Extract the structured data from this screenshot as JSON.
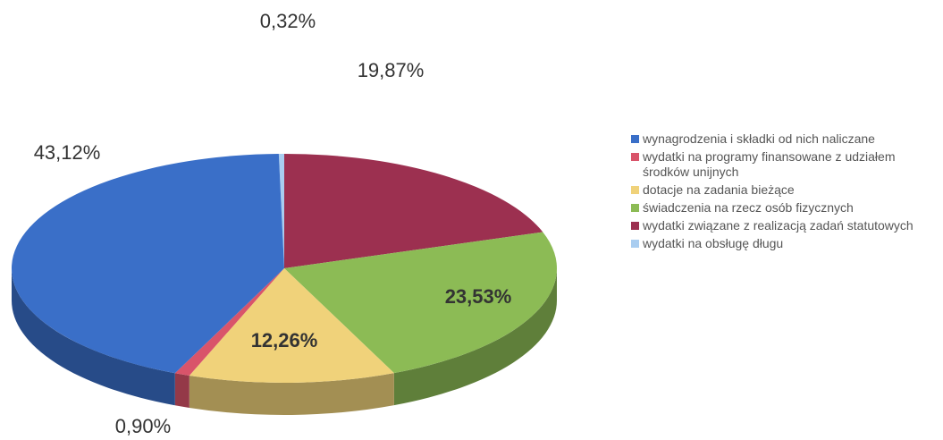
{
  "chart_data": {
    "type": "pie",
    "categories": [
      "wynagrodzenia i składki od nich naliczane",
      "wydatki na programy finansowane z udziałem środków unijnych",
      "dotacje na zadania bieżące",
      "świadczenia na rzecz osób fizycznych",
      "wydatki związane z realizacją zadań statutowych",
      "wydatki na obsługę długu"
    ],
    "values": [
      43.12,
      0.9,
      12.26,
      23.53,
      19.87,
      0.32
    ],
    "value_labels": [
      "43,12%",
      "0,90%",
      "12,26%",
      "23,53%",
      "19,87%",
      "0,32%"
    ],
    "colors": [
      "#3a6fc8",
      "#d9546a",
      "#f0d27a",
      "#8cbb55",
      "#9c3050",
      "#a9cdf0"
    ],
    "legend": "right"
  }
}
